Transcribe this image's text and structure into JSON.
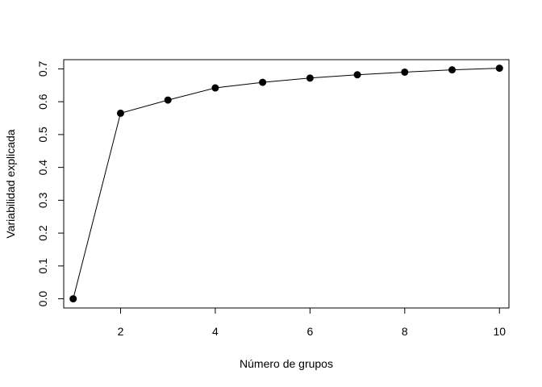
{
  "chart_data": {
    "type": "line",
    "title": "",
    "xlabel": "Número de grupos",
    "ylabel": "Variabilidad explicada",
    "xlim": [
      0.8,
      10.2
    ],
    "ylim": [
      -0.028,
      0.728
    ],
    "x_ticks": [
      2,
      4,
      6,
      8,
      10
    ],
    "x_tick_labels": [
      "2",
      "4",
      "6",
      "8",
      "10"
    ],
    "y_ticks": [
      0,
      0.1,
      0.2,
      0.3,
      0.4,
      0.5,
      0.6,
      0.7
    ],
    "y_tick_labels": [
      "0.0",
      "0.1",
      "0.2",
      "0.3",
      "0.4",
      "0.5",
      "0.6",
      "0.7"
    ],
    "grid": false,
    "legend": "none",
    "series": [
      {
        "x": [
          1,
          2,
          3,
          4,
          5,
          6,
          7,
          8,
          9,
          10
        ],
        "values": [
          0.0,
          0.565,
          0.605,
          0.642,
          0.659,
          0.672,
          0.682,
          0.69,
          0.697,
          0.702
        ],
        "color": "#000000",
        "marker": "filled-circle"
      }
    ]
  }
}
